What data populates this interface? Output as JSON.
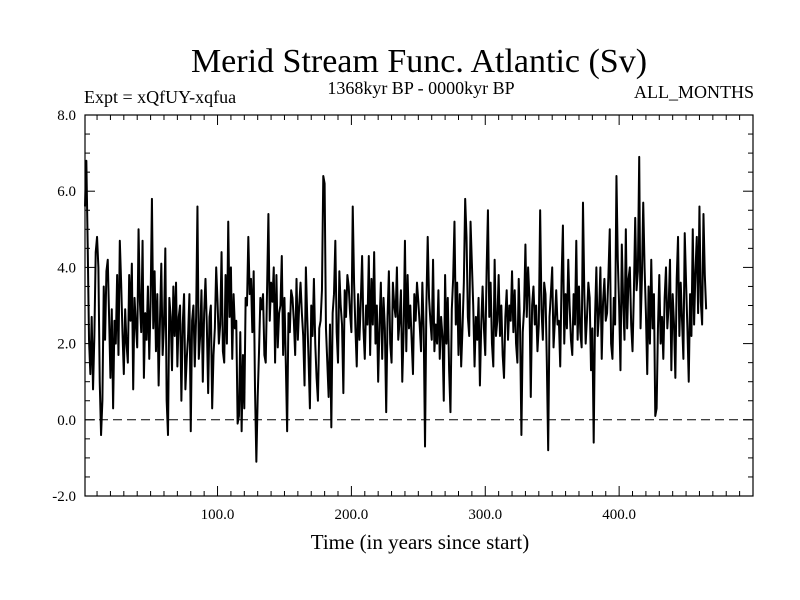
{
  "chart_data": {
    "type": "line",
    "title": "Merid Stream Func. Atlantic (Sv)",
    "experiment_label": "Expt = xQfUY-xqfua",
    "period_label": "1368kyr BP - 0000kyr BP",
    "months_label": "ALL_MONTHS",
    "xlabel": "Time (in years since start)",
    "ylabel": "",
    "xlim": [
      1,
      500
    ],
    "ylim": [
      -2.0,
      8.0
    ],
    "x_ticks": [
      100,
      200,
      300,
      400
    ],
    "x_tick_labels": [
      "100.0",
      "200.0",
      "300.0",
      "400.0"
    ],
    "y_ticks": [
      -2,
      0,
      2,
      4,
      6,
      8
    ],
    "y_tick_labels": [
      "-2.0",
      "0.0",
      "2.0",
      "4.0",
      "6.0",
      "8.0"
    ],
    "reference_line": 0.0,
    "series": [
      {
        "name": "Atlantic meridional stream function",
        "x_start": 1,
        "x_step": 1,
        "values": [
          5.6,
          6.8,
          4.6,
          2.1,
          1.2,
          2.7,
          0.8,
          2.2,
          4.4,
          4.8,
          4.0,
          1.0,
          -0.4,
          0.5,
          3.5,
          2.1,
          3.9,
          4.2,
          2.7,
          1.1,
          2.9,
          0.3,
          2.6,
          2.0,
          3.8,
          1.7,
          4.7,
          3.6,
          2.3,
          1.2,
          2.9,
          2.0,
          1.5,
          3.8,
          2.6,
          4.1,
          0.8,
          3.2,
          2.5,
          1.9,
          5.0,
          3.1,
          2.3,
          4.7,
          1.1,
          2.8,
          2.1,
          3.5,
          1.6,
          3.1,
          5.8,
          2.4,
          3.9,
          1.8,
          3.3,
          0.9,
          2.6,
          4.1,
          1.7,
          2.5,
          4.5,
          0.5,
          -0.4,
          3.2,
          2.7,
          1.3,
          3.5,
          2.2,
          3.6,
          1.4,
          2.7,
          3.0,
          0.5,
          2.5,
          3.3,
          0.8,
          1.6,
          2.2,
          3.3,
          -0.3,
          2.6,
          3.0,
          1.4,
          2.7,
          5.6,
          1.6,
          2.2,
          3.4,
          1.0,
          2.8,
          3.7,
          2.5,
          0.7,
          2.7,
          3.0,
          0.3,
          1.7,
          2.4,
          4.0,
          3.1,
          2.0,
          2.5,
          4.4,
          1.8,
          1.5,
          3.8,
          2.0,
          5.2,
          2.7,
          4.0,
          1.6,
          3.3,
          2.4,
          2.6,
          -0.1,
          0.1,
          2.3,
          -0.3,
          1.7,
          0.3,
          3.2,
          3.0,
          4.8,
          3.3,
          3.7,
          2.3,
          3.9,
          0.8,
          -1.1,
          0.6,
          1.8,
          3.2,
          2.9,
          3.3,
          1.7,
          1.5,
          3.4,
          5.4,
          2.6,
          3.6,
          3.1,
          4.0,
          1.5,
          3.8,
          1.9,
          2.8,
          3.0,
          4.3,
          1.7,
          3.2,
          1.5,
          -0.3,
          2.8,
          2.3,
          3.4,
          3.2,
          2.6,
          1.7,
          3.7,
          2.1,
          3.0,
          3.6,
          2.8,
          2.2,
          0.9,
          4.0,
          2.7,
          1.6,
          0.3,
          3.0,
          2.2,
          3.7,
          2.0,
          1.1,
          0.5,
          2.4,
          2.6,
          3.4,
          6.4,
          6.2,
          2.4,
          1.5,
          0.6,
          2.5,
          -0.2,
          2.8,
          3.3,
          4.7,
          2.3,
          1.5,
          3.9,
          3.0,
          2.5,
          0.7,
          3.4,
          2.7,
          3.8,
          3.5,
          2.8,
          2.3,
          5.6,
          3.6,
          2.4,
          1.4,
          3.3,
          2.1,
          3.1,
          4.3,
          2.4,
          1.6,
          3.0,
          2.5,
          4.3,
          1.7,
          3.7,
          2.5,
          4.4,
          2.0,
          3.0,
          1.0,
          2.5,
          3.6,
          1.6,
          3.2,
          2.4,
          0.2,
          2.7,
          3.9,
          2.0,
          1.5,
          3.6,
          3.0,
          2.7,
          4.0,
          2.1,
          2.6,
          3.4,
          1.0,
          2.3,
          4.7,
          1.8,
          3.8,
          2.4,
          3.0,
          2.1,
          1.2,
          3.3,
          2.6,
          3.6,
          3.1,
          2.5,
          1.8,
          3.6,
          2.4,
          -0.7,
          3.0,
          4.8,
          3.2,
          2.6,
          2.1,
          4.2,
          1.8,
          2.5,
          2.0,
          3.4,
          1.6,
          2.7,
          2.2,
          0.5,
          3.8,
          2.0,
          3.2,
          1.3,
          0.2,
          2.9,
          3.7,
          5.2,
          2.5,
          3.6,
          1.7,
          3.3,
          1.4,
          2.4,
          3.6,
          5.8,
          4.8,
          2.7,
          2.2,
          5.2,
          4.1,
          3.0,
          1.4,
          2.7,
          2.1,
          3.2,
          0.9,
          2.5,
          3.5,
          2.4,
          1.7,
          3.9,
          5.5,
          2.7,
          3.6,
          2.0,
          1.4,
          4.2,
          2.2,
          2.6,
          3.8,
          2.2,
          3.0,
          1.7,
          1.1,
          2.7,
          3.4,
          2.1,
          3.0,
          2.6,
          3.9,
          2.3,
          3.4,
          2.0,
          1.5,
          3.7,
          2.4,
          -0.4,
          2.3,
          2.9,
          4.6,
          2.7,
          4.0,
          3.2,
          0.6,
          3.0,
          3.5,
          2.5,
          3.0,
          1.8,
          2.5,
          5.5,
          2.9,
          2.1,
          3.6,
          3.3,
          1.5,
          -0.8,
          2.7,
          3.3,
          4.0,
          1.9,
          2.6,
          3.4,
          2.5,
          2.6,
          1.4,
          3.7,
          5.1,
          2.0,
          3.3,
          2.4,
          4.2,
          3.0,
          2.1,
          1.7,
          3.3,
          2.5,
          4.7,
          2.1,
          3.5,
          2.3,
          1.9,
          5.7,
          3.3,
          2.0,
          2.7,
          3.6,
          3.2,
          1.3,
          2.4,
          -0.6,
          2.7,
          4.0,
          2.2,
          2.8,
          4.0,
          1.6,
          3.1,
          3.7,
          2.6,
          2.8,
          3.8,
          5.0,
          2.0,
          1.6,
          3.2,
          2.5,
          6.4,
          4.2,
          3.0,
          1.3,
          4.6,
          3.1,
          2.1,
          5.0,
          2.4,
          3.7,
          4.0,
          2.5,
          1.8,
          3.3,
          5.3,
          3.4,
          3.9,
          6.9,
          2.4,
          3.7,
          5.7,
          4.0,
          2.8,
          1.2,
          3.5,
          2.0,
          4.2,
          2.4,
          3.3,
          0.1,
          0.3,
          2.4,
          3.8,
          2.0,
          2.7,
          1.6,
          3.2,
          4.0,
          2.4,
          3.0,
          4.2,
          1.3,
          3.3,
          2.5,
          1.1,
          3.7,
          4.8,
          2.2,
          3.6,
          2.6,
          1.6,
          4.9,
          3.6,
          2.4,
          1.0,
          3.3,
          2.2,
          5.0,
          2.5,
          3.9,
          4.8,
          2.8,
          5.6,
          3.1,
          2.5,
          5.4,
          3.8,
          2.9
        ]
      }
    ]
  }
}
